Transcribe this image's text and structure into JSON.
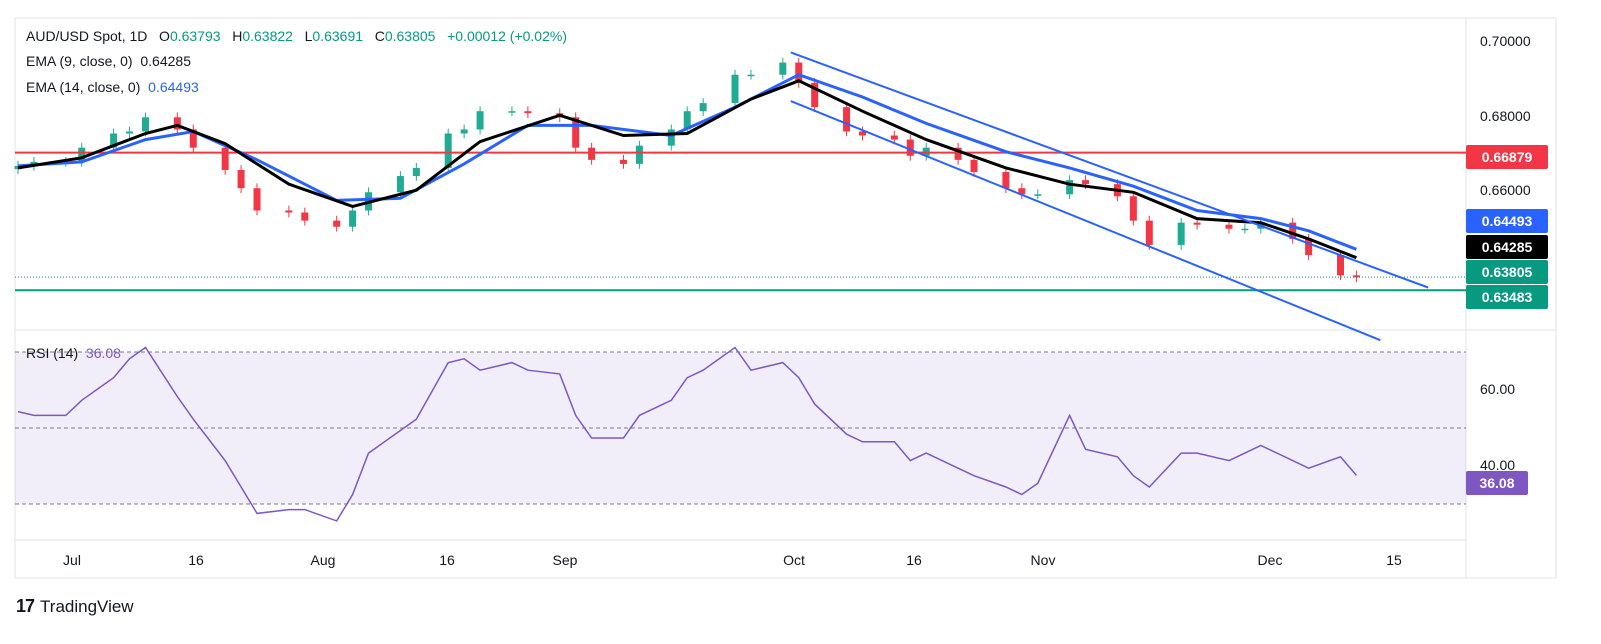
{
  "header": {
    "symbol": "AUD/USD Spot, 1D",
    "o_label": "O",
    "o_value": "0.63793",
    "h_label": "H",
    "h_value": "0.63822",
    "l_label": "L",
    "l_value": "0.63691",
    "c_label": "C",
    "c_value": "0.63805",
    "change": "+0.00012 (+0.02%)",
    "ema9_label": "EMA (9, close, 0)",
    "ema9_value": "0.64285",
    "ema14_label": "EMA (14, close, 0)",
    "ema14_value": "0.64493",
    "rsi_label": "RSI (14)",
    "rsi_value": "36.08"
  },
  "price_tags": {
    "resistance": "0.66879",
    "ema14": "0.64493",
    "ema9": "0.64285",
    "last": "0.63805",
    "support": "0.63483",
    "rsi": "36.08"
  },
  "price_axis": [
    "0.70000",
    "0.68000",
    "0.66000"
  ],
  "rsi_axis": [
    "60.00",
    "40.00"
  ],
  "x_axis": [
    "Jul",
    "16",
    "Aug",
    "16",
    "Sep",
    "Oct",
    "16",
    "Nov",
    "Dec",
    "15"
  ],
  "branding": {
    "name": "TradingView"
  },
  "colors": {
    "up": "#22ab94",
    "down": "#f23645",
    "ema9": "#000000",
    "ema14": "#2962ff",
    "channel": "#2962ff",
    "resistance": "#f23645",
    "support": "#089981",
    "rsi": "#7e57c2"
  },
  "chart_data": {
    "type": "line",
    "title": "AUD/USD Spot, 1D",
    "price_range": [
      0.626,
      0.702
    ],
    "rsi_range": [
      20,
      72
    ],
    "resistance_level": 0.66879,
    "support_level": 0.63483,
    "last_price": 0.63805,
    "channel": {
      "upper": [
        [
          "2024-10-01",
          0.6935
        ],
        [
          "2024-12-20",
          0.6355
        ]
      ],
      "lower": [
        [
          "2024-10-01",
          0.6815
        ],
        [
          "2024-12-14",
          0.6225
        ]
      ]
    },
    "close": [
      [
        "2024-06-26",
        0.6655
      ],
      [
        "2024-06-28",
        0.6665
      ],
      [
        "2024-07-02",
        0.6665
      ],
      [
        "2024-07-04",
        0.67
      ],
      [
        "2024-07-08",
        0.6735
      ],
      [
        "2024-07-10",
        0.674
      ],
      [
        "2024-07-12",
        0.6775
      ],
      [
        "2024-07-16",
        0.6745
      ],
      [
        "2024-07-18",
        0.67
      ],
      [
        "2024-07-22",
        0.6645
      ],
      [
        "2024-07-24",
        0.66
      ],
      [
        "2024-07-26",
        0.6545
      ],
      [
        "2024-07-30",
        0.654
      ],
      [
        "2024-08-01",
        0.652
      ],
      [
        "2024-08-05",
        0.6505
      ],
      [
        "2024-08-07",
        0.6545
      ],
      [
        "2024-08-09",
        0.659
      ],
      [
        "2024-08-13",
        0.663
      ],
      [
        "2024-08-15",
        0.665
      ],
      [
        "2024-08-19",
        0.6735
      ],
      [
        "2024-08-21",
        0.6745
      ],
      [
        "2024-08-23",
        0.679
      ],
      [
        "2024-08-27",
        0.679
      ],
      [
        "2024-08-29",
        0.6785
      ],
      [
        "2024-09-02",
        0.6775
      ],
      [
        "2024-09-04",
        0.67
      ],
      [
        "2024-09-06",
        0.667
      ],
      [
        "2024-09-10",
        0.666
      ],
      [
        "2024-09-12",
        0.6705
      ],
      [
        "2024-09-16",
        0.6745
      ],
      [
        "2024-09-18",
        0.679
      ],
      [
        "2024-09-20",
        0.681
      ],
      [
        "2024-09-24",
        0.688
      ],
      [
        "2024-09-26",
        0.688
      ],
      [
        "2024-09-30",
        0.691
      ],
      [
        "2024-10-02",
        0.686
      ],
      [
        "2024-10-04",
        0.68
      ],
      [
        "2024-10-08",
        0.674
      ],
      [
        "2024-10-10",
        0.673
      ],
      [
        "2024-10-14",
        0.672
      ],
      [
        "2024-10-16",
        0.668
      ],
      [
        "2024-10-18",
        0.67
      ],
      [
        "2024-10-22",
        0.667
      ],
      [
        "2024-10-24",
        0.664
      ],
      [
        "2024-10-28",
        0.66
      ],
      [
        "2024-10-30",
        0.6585
      ],
      [
        "2024-11-01",
        0.6585
      ],
      [
        "2024-11-05",
        0.662
      ],
      [
        "2024-11-07",
        0.661
      ],
      [
        "2024-11-11",
        0.658
      ],
      [
        "2024-11-13",
        0.652
      ],
      [
        "2024-11-15",
        0.646
      ],
      [
        "2024-11-19",
        0.6515
      ],
      [
        "2024-11-21",
        0.651
      ],
      [
        "2024-11-25",
        0.65
      ],
      [
        "2024-11-27",
        0.65
      ],
      [
        "2024-11-29",
        0.6515
      ],
      [
        "2024-12-03",
        0.6475
      ],
      [
        "2024-12-05",
        0.6435
      ],
      [
        "2024-12-09",
        0.6385
      ],
      [
        "2024-12-11",
        0.638
      ]
    ],
    "ema9": [
      [
        "2024-06-26",
        0.665
      ],
      [
        "2024-07-04",
        0.6675
      ],
      [
        "2024-07-12",
        0.6735
      ],
      [
        "2024-07-16",
        0.6755
      ],
      [
        "2024-07-22",
        0.671
      ],
      [
        "2024-07-30",
        0.661
      ],
      [
        "2024-08-07",
        0.6555
      ],
      [
        "2024-08-15",
        0.6595
      ],
      [
        "2024-08-23",
        0.6715
      ],
      [
        "2024-09-02",
        0.678
      ],
      [
        "2024-09-10",
        0.673
      ],
      [
        "2024-09-18",
        0.6735
      ],
      [
        "2024-09-26",
        0.682
      ],
      [
        "2024-10-02",
        0.6865
      ],
      [
        "2024-10-10",
        0.679
      ],
      [
        "2024-10-18",
        0.672
      ],
      [
        "2024-10-28",
        0.665
      ],
      [
        "2024-11-05",
        0.661
      ],
      [
        "2024-11-13",
        0.659
      ],
      [
        "2024-11-21",
        0.6525
      ],
      [
        "2024-11-29",
        0.6515
      ],
      [
        "2024-12-05",
        0.6475
      ],
      [
        "2024-12-11",
        0.64285
      ]
    ],
    "ema14": [
      [
        "2024-06-26",
        0.6655
      ],
      [
        "2024-07-04",
        0.6665
      ],
      [
        "2024-07-12",
        0.672
      ],
      [
        "2024-07-18",
        0.674
      ],
      [
        "2024-07-26",
        0.667
      ],
      [
        "2024-08-05",
        0.657
      ],
      [
        "2024-08-13",
        0.6575
      ],
      [
        "2024-08-21",
        0.666
      ],
      [
        "2024-08-29",
        0.6755
      ],
      [
        "2024-09-06",
        0.6755
      ],
      [
        "2024-09-16",
        0.673
      ],
      [
        "2024-09-24",
        0.68
      ],
      [
        "2024-10-02",
        0.688
      ],
      [
        "2024-10-10",
        0.6825
      ],
      [
        "2024-10-18",
        0.676
      ],
      [
        "2024-10-28",
        0.669
      ],
      [
        "2024-11-05",
        0.665
      ],
      [
        "2024-11-13",
        0.6605
      ],
      [
        "2024-11-21",
        0.6545
      ],
      [
        "2024-11-29",
        0.6525
      ],
      [
        "2024-12-05",
        0.6495
      ],
      [
        "2024-12-11",
        0.64493
      ]
    ],
    "rsi": [
      [
        "2024-06-26",
        53
      ],
      [
        "2024-06-28",
        52
      ],
      [
        "2024-07-02",
        52
      ],
      [
        "2024-07-04",
        56
      ],
      [
        "2024-07-08",
        62
      ],
      [
        "2024-07-10",
        67
      ],
      [
        "2024-07-12",
        70
      ],
      [
        "2024-07-16",
        57
      ],
      [
        "2024-07-18",
        51
      ],
      [
        "2024-07-22",
        40
      ],
      [
        "2024-07-24",
        33
      ],
      [
        "2024-07-26",
        26
      ],
      [
        "2024-07-30",
        27
      ],
      [
        "2024-08-01",
        27
      ],
      [
        "2024-08-05",
        24
      ],
      [
        "2024-08-07",
        31
      ],
      [
        "2024-08-09",
        42
      ],
      [
        "2024-08-13",
        48
      ],
      [
        "2024-08-15",
        51
      ],
      [
        "2024-08-19",
        66
      ],
      [
        "2024-08-21",
        67
      ],
      [
        "2024-08-23",
        64
      ],
      [
        "2024-08-27",
        66
      ],
      [
        "2024-08-29",
        64
      ],
      [
        "2024-09-02",
        63
      ],
      [
        "2024-09-04",
        52
      ],
      [
        "2024-09-06",
        46
      ],
      [
        "2024-09-10",
        46
      ],
      [
        "2024-09-12",
        52
      ],
      [
        "2024-09-16",
        56
      ],
      [
        "2024-09-18",
        62
      ],
      [
        "2024-09-20",
        64
      ],
      [
        "2024-09-24",
        70
      ],
      [
        "2024-09-26",
        64
      ],
      [
        "2024-09-30",
        66
      ],
      [
        "2024-10-02",
        62
      ],
      [
        "2024-10-04",
        55
      ],
      [
        "2024-10-08",
        47
      ],
      [
        "2024-10-10",
        45
      ],
      [
        "2024-10-14",
        45
      ],
      [
        "2024-10-16",
        40
      ],
      [
        "2024-10-18",
        42
      ],
      [
        "2024-10-22",
        38
      ],
      [
        "2024-10-24",
        36
      ],
      [
        "2024-10-28",
        33
      ],
      [
        "2024-10-30",
        31
      ],
      [
        "2024-11-01",
        34
      ],
      [
        "2024-11-05",
        52
      ],
      [
        "2024-11-07",
        43
      ],
      [
        "2024-11-11",
        41
      ],
      [
        "2024-11-13",
        36
      ],
      [
        "2024-11-15",
        33
      ],
      [
        "2024-11-19",
        42
      ],
      [
        "2024-11-21",
        42
      ],
      [
        "2024-11-25",
        40
      ],
      [
        "2024-11-27",
        42
      ],
      [
        "2024-11-29",
        44
      ],
      [
        "2024-12-03",
        40
      ],
      [
        "2024-12-05",
        38
      ],
      [
        "2024-12-09",
        41
      ],
      [
        "2024-12-11",
        36.08
      ]
    ]
  }
}
